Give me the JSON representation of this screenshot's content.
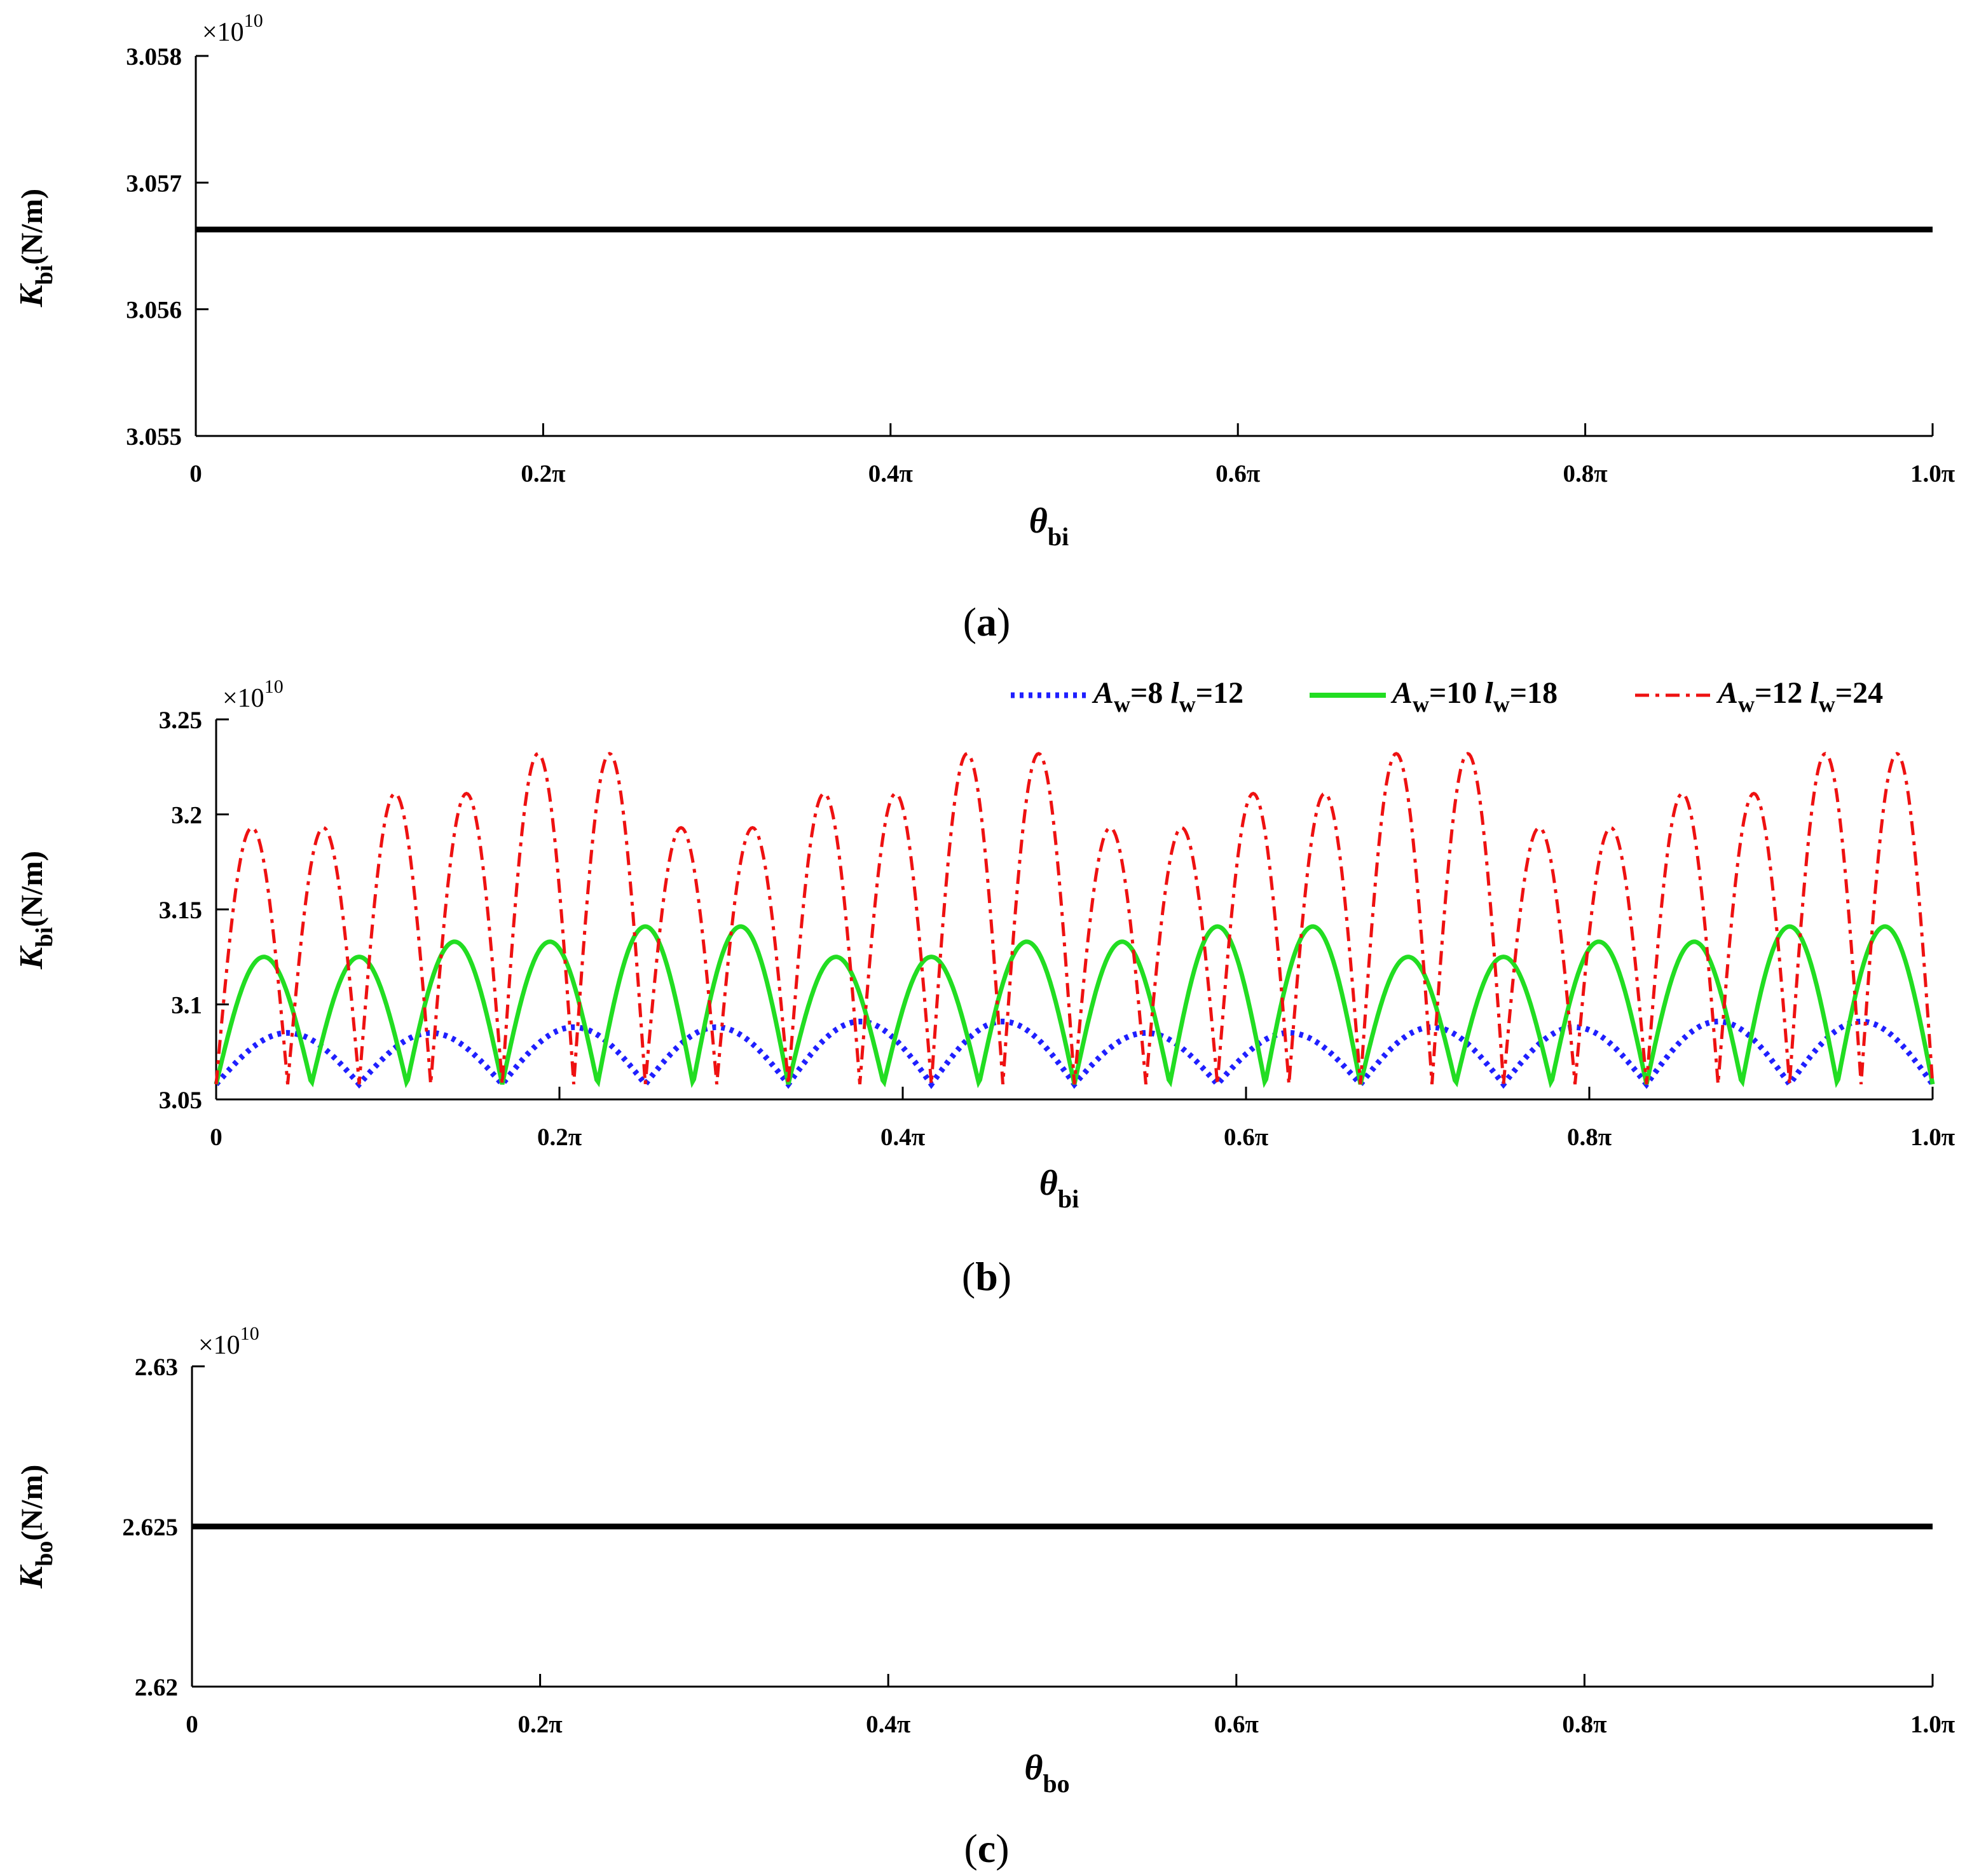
{
  "chart_data": [
    {
      "panel": "a",
      "caption_letter": "a",
      "type": "line",
      "xlabel_main": "θ",
      "xlabel_sub": "bi",
      "ylabel_main": "K",
      "ylabel_sub": "bi",
      "ylabel_unit": "(N/m)",
      "exponent_base": "×10",
      "exponent_power": "10",
      "xlim": [
        0,
        1.0
      ],
      "ylim": [
        3.055,
        3.058
      ],
      "xticks": [
        0,
        0.2,
        0.4,
        0.6,
        0.8,
        1.0
      ],
      "xtick_labels": [
        "0",
        "0.2π",
        "0.4π",
        "0.6π",
        "0.8π",
        "1.0π"
      ],
      "yticks": [
        3.055,
        3.056,
        3.057,
        3.058
      ],
      "ytick_labels": [
        "3.055",
        "3.056",
        "3.057",
        "3.058"
      ],
      "series": [
        {
          "color": "#000000",
          "style": "solid",
          "x": [
            0,
            1.0
          ],
          "y": [
            3.05663,
            3.05663
          ]
        }
      ]
    },
    {
      "panel": "b",
      "caption_letter": "b",
      "type": "line",
      "xlabel_main": "θ",
      "xlabel_sub": "bi",
      "ylabel_main": "K",
      "ylabel_sub": "bi",
      "ylabel_unit": "(N/m)",
      "exponent_base": "×10",
      "exponent_power": "10",
      "xlim": [
        0,
        1.0
      ],
      "ylim": [
        3.05,
        3.25
      ],
      "xticks": [
        0,
        0.2,
        0.4,
        0.6,
        0.8,
        1.0
      ],
      "xtick_labels": [
        "0",
        "0.2π",
        "0.4π",
        "0.6π",
        "0.8π",
        "1.0π"
      ],
      "yticks": [
        3.05,
        3.1,
        3.15,
        3.2,
        3.25
      ],
      "ytick_labels": [
        "3.05",
        "3.1",
        "3.15",
        "3.2",
        "3.25"
      ],
      "legend_position": "top-right",
      "series": [
        {
          "A_label": "A",
          "A_sub": "w",
          "A_value": "=8",
          "l_label": "l",
          "l_sub": "w",
          "l_value": "=12",
          "color": "#1f1fff",
          "style": "dotted",
          "base": 3.058,
          "arches": 12,
          "peaks": [
            3.085,
            3.085,
            3.088,
            3.088,
            3.091,
            3.091,
            3.085,
            3.085,
            3.088,
            3.088,
            3.091,
            3.091
          ]
        },
        {
          "A_label": "A",
          "A_sub": "w",
          "A_value": "=10",
          "l_label": "l",
          "l_sub": "w",
          "l_value": "=18",
          "color": "#22dd22",
          "style": "solid",
          "base": 3.058,
          "arches": 18,
          "peaks": [
            3.125,
            3.125,
            3.133,
            3.133,
            3.141,
            3.141,
            3.125,
            3.125,
            3.133,
            3.133,
            3.141,
            3.141,
            3.125,
            3.125,
            3.133,
            3.133,
            3.141,
            3.141
          ]
        },
        {
          "A_label": "A",
          "A_sub": "w",
          "A_value": "=12",
          "l_label": "l",
          "l_sub": "w",
          "l_value": "=24",
          "color": "#ee1111",
          "style": "dashdot",
          "base": 3.058,
          "arches": 24,
          "peaks": [
            3.193,
            3.193,
            3.211,
            3.211,
            3.232,
            3.232,
            3.193,
            3.193,
            3.211,
            3.211,
            3.232,
            3.232,
            3.193,
            3.193,
            3.211,
            3.211,
            3.232,
            3.232,
            3.193,
            3.193,
            3.211,
            3.211,
            3.232,
            3.232
          ]
        }
      ]
    },
    {
      "panel": "c",
      "caption_letter": "c",
      "type": "line",
      "xlabel_main": "θ",
      "xlabel_sub": "bo",
      "ylabel_main": "K",
      "ylabel_sub": "bo",
      "ylabel_unit": "(N/m)",
      "exponent_base": "×10",
      "exponent_power": "10",
      "xlim": [
        0,
        1.0
      ],
      "ylim": [
        2.62,
        2.63
      ],
      "xticks": [
        0,
        0.2,
        0.4,
        0.6,
        0.8,
        1.0
      ],
      "xtick_labels": [
        "0",
        "0.2π",
        "0.4π",
        "0.6π",
        "0.8π",
        "1.0π"
      ],
      "yticks": [
        2.62,
        2.625,
        2.63
      ],
      "ytick_labels": [
        "2.62",
        "2.625",
        "2.63"
      ],
      "series": [
        {
          "color": "#000000",
          "style": "solid",
          "x": [
            0,
            1.0
          ],
          "y": [
            2.625,
            2.625
          ]
        }
      ]
    }
  ]
}
